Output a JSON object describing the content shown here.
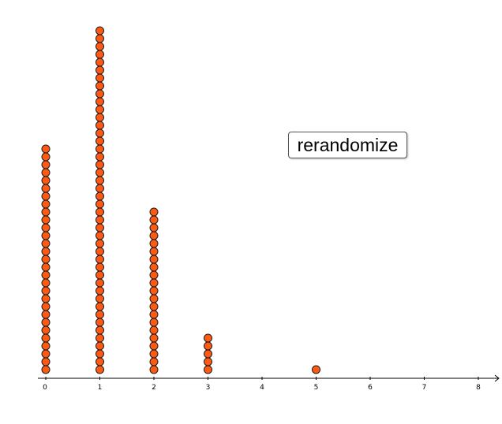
{
  "button": {
    "label": "rerandomize"
  },
  "colors": {
    "dot_fill": "#ff5a12",
    "dot_stroke": "#1a1a1a",
    "axis": "#000000"
  },
  "chart_data": {
    "type": "scatter",
    "style": "dot-plot",
    "x_ticks": [
      0,
      1,
      2,
      3,
      4,
      5,
      6,
      7,
      8
    ],
    "x_tick_labels": [
      "0",
      "1",
      "2",
      "3",
      "4",
      "5",
      "6",
      "7",
      "8"
    ],
    "xlim": [
      0,
      8.4
    ],
    "counts": [
      {
        "x": 0,
        "count": 29
      },
      {
        "x": 1,
        "count": 44
      },
      {
        "x": 2,
        "count": 21
      },
      {
        "x": 3,
        "count": 5
      },
      {
        "x": 5,
        "count": 1
      }
    ],
    "y_axis_shown": false,
    "grid": false
  }
}
